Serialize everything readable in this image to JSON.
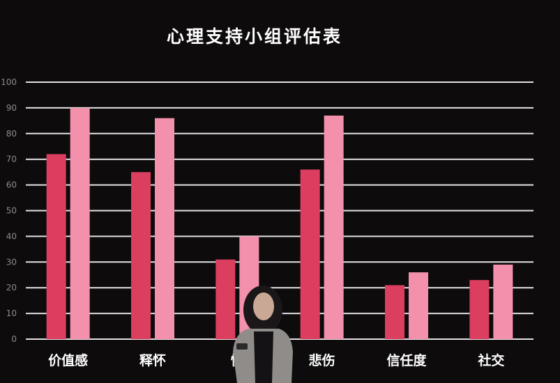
{
  "chart_data": {
    "type": "bar",
    "title": "心理支持小组评估表",
    "categories": [
      "价值感",
      "释怀",
      "愤",
      "悲伤",
      "信任度",
      "社交"
    ],
    "series": [
      {
        "values": [
          72,
          65,
          31,
          66,
          21,
          23
        ],
        "color": "#dc3e60"
      },
      {
        "values": [
          90,
          86,
          40,
          87,
          26,
          29
        ],
        "color": "#f390ac"
      }
    ],
    "ylim": [
      0,
      100
    ],
    "yticks": [
      0,
      10,
      20,
      30,
      40,
      50,
      60,
      70,
      80,
      90,
      100
    ],
    "grid": true,
    "xlabel": "",
    "ylabel": ""
  }
}
